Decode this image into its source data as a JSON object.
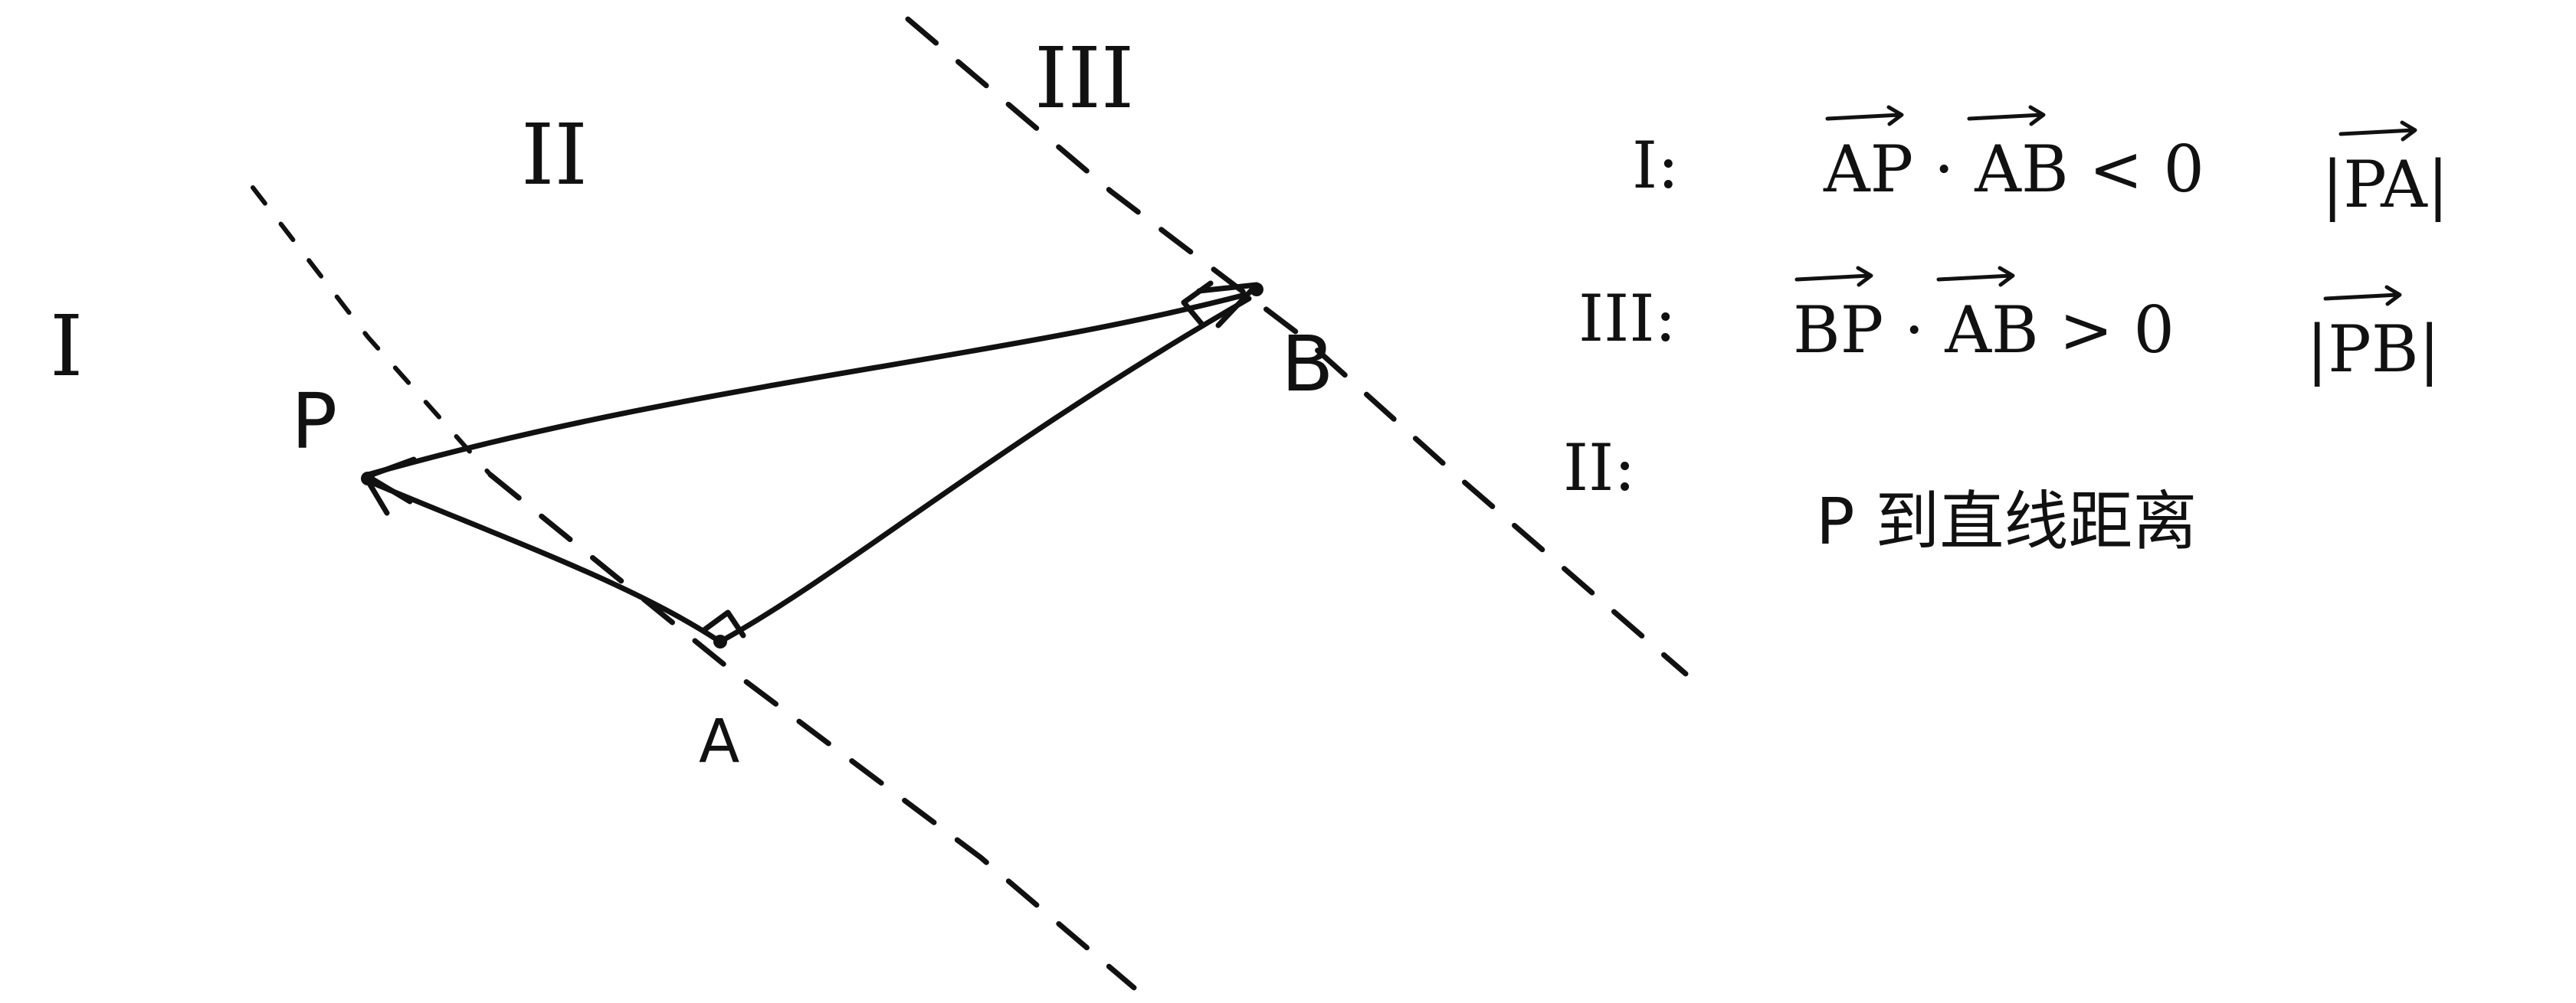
{
  "regions": {
    "one": "I",
    "two": "II",
    "three": "III"
  },
  "points": {
    "p": "P",
    "a": "A",
    "b": "B"
  },
  "conditions": [
    {
      "region": "I:",
      "condition": "AP · AB < 0",
      "distance": "|PA|"
    },
    {
      "region": "III:",
      "condition": "BP · AB > 0",
      "distance": "|PB|"
    },
    {
      "region": "II:",
      "condition": "P 到直线距离",
      "distance": ""
    }
  ]
}
